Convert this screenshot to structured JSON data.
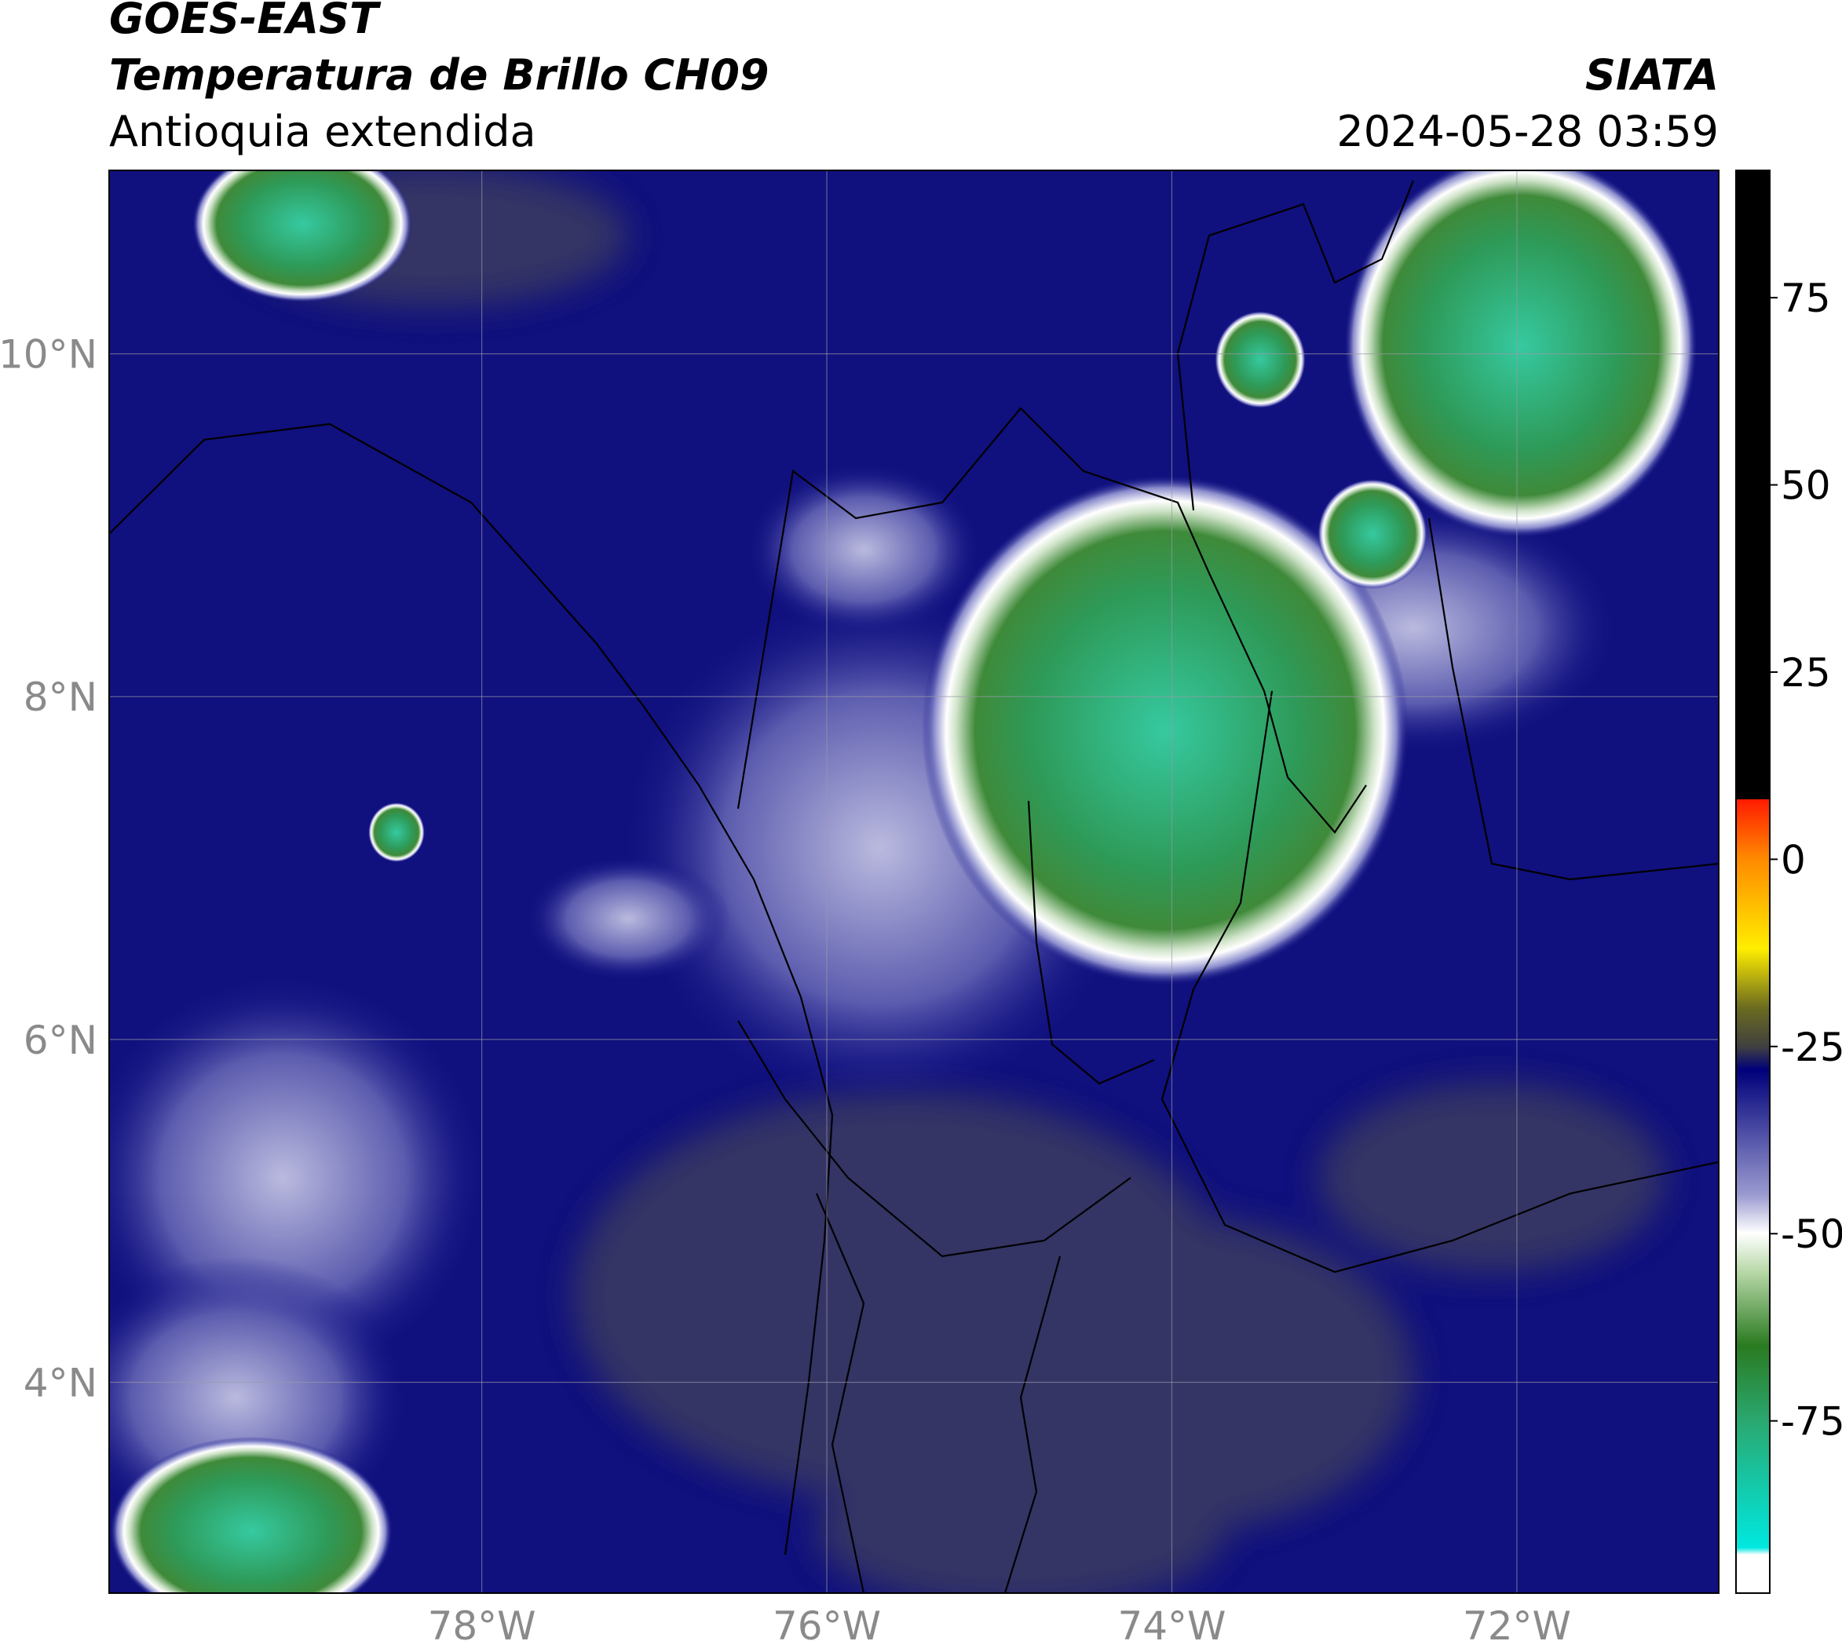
{
  "header": {
    "title": "GOES-EAST",
    "subtitle": "Temperatura de Brillo CH09",
    "region": "Antioquia extendida",
    "source": "SIATA",
    "datetime": "2024-05-28 03:59"
  },
  "map": {
    "xlim": [
      -80.16,
      -70.83
    ],
    "ylim": [
      2.77,
      11.07
    ],
    "xticks": [
      {
        "value": -78,
        "label": "78°W"
      },
      {
        "value": -76,
        "label": "76°W"
      },
      {
        "value": -74,
        "label": "74°W"
      },
      {
        "value": -72,
        "label": "72°W"
      }
    ],
    "yticks": [
      {
        "value": 10,
        "label": "10°N"
      },
      {
        "value": 8,
        "label": "8°N"
      },
      {
        "value": 6,
        "label": "6°N"
      },
      {
        "value": 4,
        "label": "4°N"
      }
    ],
    "grid": true
  },
  "colorbar": {
    "lim": [
      -98,
      92
    ],
    "ticks": [
      75,
      50,
      25,
      0,
      -25,
      -50,
      -75
    ]
  }
}
